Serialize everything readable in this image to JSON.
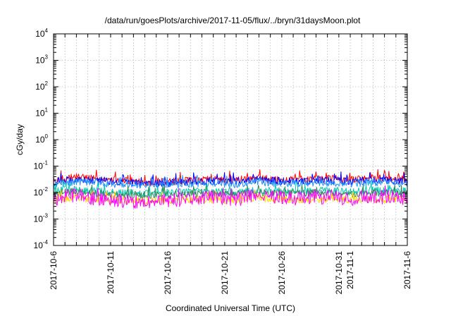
{
  "chart_data": {
    "type": "line",
    "title": "/data/run/goesPlots/archive/2017-11-05/flux/../bryn/31daysMoon.plot",
    "xlabel": "Coordinated Universal Time (UTC)",
    "ylabel": "cGy/day",
    "yscale": "log",
    "ylim": [
      0.0001,
      10000
    ],
    "xlim": [
      "2017-10-06",
      "2017-11-06"
    ],
    "grid": true,
    "legend": "none",
    "y_ticks": [
      {
        "base": "10",
        "exp": "-4"
      },
      {
        "base": "10",
        "exp": "-3"
      },
      {
        "base": "10",
        "exp": "-2"
      },
      {
        "base": "10",
        "exp": "-1"
      },
      {
        "base": "10",
        "exp": "0"
      },
      {
        "base": "10",
        "exp": "1"
      },
      {
        "base": "10",
        "exp": "2"
      },
      {
        "base": "10",
        "exp": "3"
      },
      {
        "base": "10",
        "exp": "4"
      }
    ],
    "x_ticks": [
      {
        "date": "2017-10-06",
        "label": "2017-10-6"
      },
      {
        "date": "2017-10-11",
        "label": "2017-10-11"
      },
      {
        "date": "2017-10-16",
        "label": "2017-10-16"
      },
      {
        "date": "2017-10-21",
        "label": "2017-10-21"
      },
      {
        "date": "2017-10-26",
        "label": "2017-10-26"
      },
      {
        "date": "2017-10-31",
        "label": "2017-10-31"
      },
      {
        "date": "2017-11-01",
        "label": "2017-11-1"
      },
      {
        "date": "2017-11-06",
        "label": "2017-11-6"
      }
    ],
    "series": [
      {
        "color": "#ff0000",
        "x": [
          "2017-10-06",
          "2017-10-08",
          "2017-10-10",
          "2017-10-12",
          "2017-10-14",
          "2017-10-16",
          "2017-10-18",
          "2017-10-20",
          "2017-10-22",
          "2017-10-24",
          "2017-10-26",
          "2017-10-28",
          "2017-10-30",
          "2017-11-01",
          "2017-11-03",
          "2017-11-06"
        ],
        "values": [
          0.03,
          0.038,
          0.033,
          0.028,
          0.025,
          0.026,
          0.029,
          0.031,
          0.03,
          0.035,
          0.03,
          0.032,
          0.034,
          0.031,
          0.036,
          0.03
        ]
      },
      {
        "color": "#0000ff",
        "x": [
          "2017-10-06",
          "2017-10-08",
          "2017-10-10",
          "2017-10-12",
          "2017-10-14",
          "2017-10-16",
          "2017-10-18",
          "2017-10-20",
          "2017-10-22",
          "2017-10-24",
          "2017-10-26",
          "2017-10-28",
          "2017-10-30",
          "2017-11-01",
          "2017-11-03",
          "2017-11-06"
        ],
        "values": [
          0.026,
          0.032,
          0.029,
          0.025,
          0.022,
          0.023,
          0.026,
          0.027,
          0.026,
          0.031,
          0.027,
          0.028,
          0.03,
          0.027,
          0.031,
          0.026
        ]
      },
      {
        "color": "#1e90ff",
        "x": [
          "2017-10-06",
          "2017-10-08",
          "2017-10-10",
          "2017-10-12",
          "2017-10-14",
          "2017-10-16",
          "2017-10-18",
          "2017-10-20",
          "2017-10-22",
          "2017-10-24",
          "2017-10-26",
          "2017-10-28",
          "2017-10-30",
          "2017-11-01",
          "2017-11-03",
          "2017-11-06"
        ],
        "values": [
          0.021,
          0.026,
          0.023,
          0.02,
          0.018,
          0.019,
          0.021,
          0.022,
          0.021,
          0.025,
          0.022,
          0.023,
          0.024,
          0.022,
          0.025,
          0.021
        ]
      },
      {
        "color": "#00c8b4",
        "x": [
          "2017-10-06",
          "2017-10-08",
          "2017-10-10",
          "2017-10-12",
          "2017-10-14",
          "2017-10-16",
          "2017-10-18",
          "2017-10-20",
          "2017-10-22",
          "2017-10-24",
          "2017-10-26",
          "2017-10-28",
          "2017-10-30",
          "2017-11-01",
          "2017-11-03",
          "2017-11-06"
        ],
        "values": [
          0.012,
          0.013,
          0.011,
          0.01,
          0.009,
          0.01,
          0.011,
          0.011,
          0.01,
          0.012,
          0.011,
          0.011,
          0.012,
          0.011,
          0.012,
          0.011
        ]
      },
      {
        "color": "#2e8b57",
        "x": [
          "2017-10-06",
          "2017-10-08",
          "2017-10-10",
          "2017-10-12",
          "2017-10-14",
          "2017-10-16",
          "2017-10-18",
          "2017-10-20",
          "2017-10-22",
          "2017-10-24",
          "2017-10-26",
          "2017-10-28",
          "2017-10-30",
          "2017-11-01",
          "2017-11-03",
          "2017-11-06"
        ],
        "values": [
          0.0095,
          0.011,
          0.009,
          0.0085,
          0.008,
          0.0085,
          0.009,
          0.0095,
          0.009,
          0.01,
          0.0092,
          0.0095,
          0.01,
          0.009,
          0.01,
          0.0092
        ]
      },
      {
        "color": "#ffd700",
        "x": [
          "2017-10-06",
          "2017-10-08",
          "2017-10-10",
          "2017-10-12",
          "2017-10-14",
          "2017-10-16",
          "2017-10-18",
          "2017-10-20",
          "2017-10-22",
          "2017-10-24",
          "2017-10-26",
          "2017-10-28",
          "2017-10-30",
          "2017-11-01",
          "2017-11-03",
          "2017-11-06"
        ],
        "values": [
          0.0055,
          0.0062,
          0.0052,
          0.005,
          0.0048,
          0.005,
          0.0053,
          0.0055,
          0.0052,
          0.006,
          0.0054,
          0.0056,
          0.0058,
          0.0053,
          0.0058,
          0.0054
        ]
      },
      {
        "color": "#ff00ff",
        "x": [
          "2017-10-06",
          "2017-10-08",
          "2017-10-10",
          "2017-10-12",
          "2017-10-14",
          "2017-10-16",
          "2017-10-18",
          "2017-10-20",
          "2017-10-22",
          "2017-10-24",
          "2017-10-26",
          "2017-10-28",
          "2017-10-30",
          "2017-11-01",
          "2017-11-03",
          "2017-11-06"
        ],
        "values": [
          0.006,
          0.0075,
          0.0055,
          0.005,
          0.0045,
          0.0052,
          0.0058,
          0.0062,
          0.0055,
          0.008,
          0.006,
          0.0065,
          0.007,
          0.0058,
          0.0072,
          0.006
        ]
      }
    ]
  }
}
